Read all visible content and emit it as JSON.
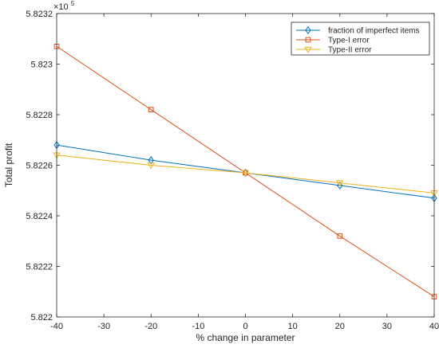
{
  "chart_data": {
    "type": "line",
    "title": "",
    "xlabel": "% change in parameter",
    "ylabel": "Total profit",
    "exponent_label": "×10",
    "exponent_power": "5",
    "xlim": [
      -40,
      40
    ],
    "ylim": [
      5.822,
      5.8232
    ],
    "x_ticks": [
      -40,
      -30,
      -20,
      -10,
      0,
      10,
      20,
      30,
      40
    ],
    "x_tick_labels": [
      "-40",
      "-30",
      "-20",
      "-10",
      "0",
      "10",
      "20",
      "30",
      "40"
    ],
    "y_ticks": [
      5.822,
      5.8222,
      5.8224,
      5.8226,
      5.8228,
      5.823,
      5.8232
    ],
    "y_tick_labels": [
      "5.822",
      "5.8222",
      "5.8224",
      "5.8226",
      "5.8228",
      "5.823",
      "5.8232"
    ],
    "grid": false,
    "legend_position": "top-right",
    "x": [
      -40,
      -20,
      0,
      20,
      40
    ],
    "series": [
      {
        "name": "fraction of imperfect items",
        "values": [
          5.82268,
          5.82262,
          5.82257,
          5.82252,
          5.82247
        ],
        "color": "#0072BD",
        "marker": "diamond"
      },
      {
        "name": "Type-I error",
        "values": [
          5.82307,
          5.82282,
          5.82257,
          5.82232,
          5.82208
        ],
        "color": "#D95319",
        "marker": "square"
      },
      {
        "name": "Type-II error",
        "values": [
          5.82264,
          5.8226,
          5.82257,
          5.82253,
          5.82249
        ],
        "color": "#EDB120",
        "marker": "triangle-down"
      }
    ]
  }
}
